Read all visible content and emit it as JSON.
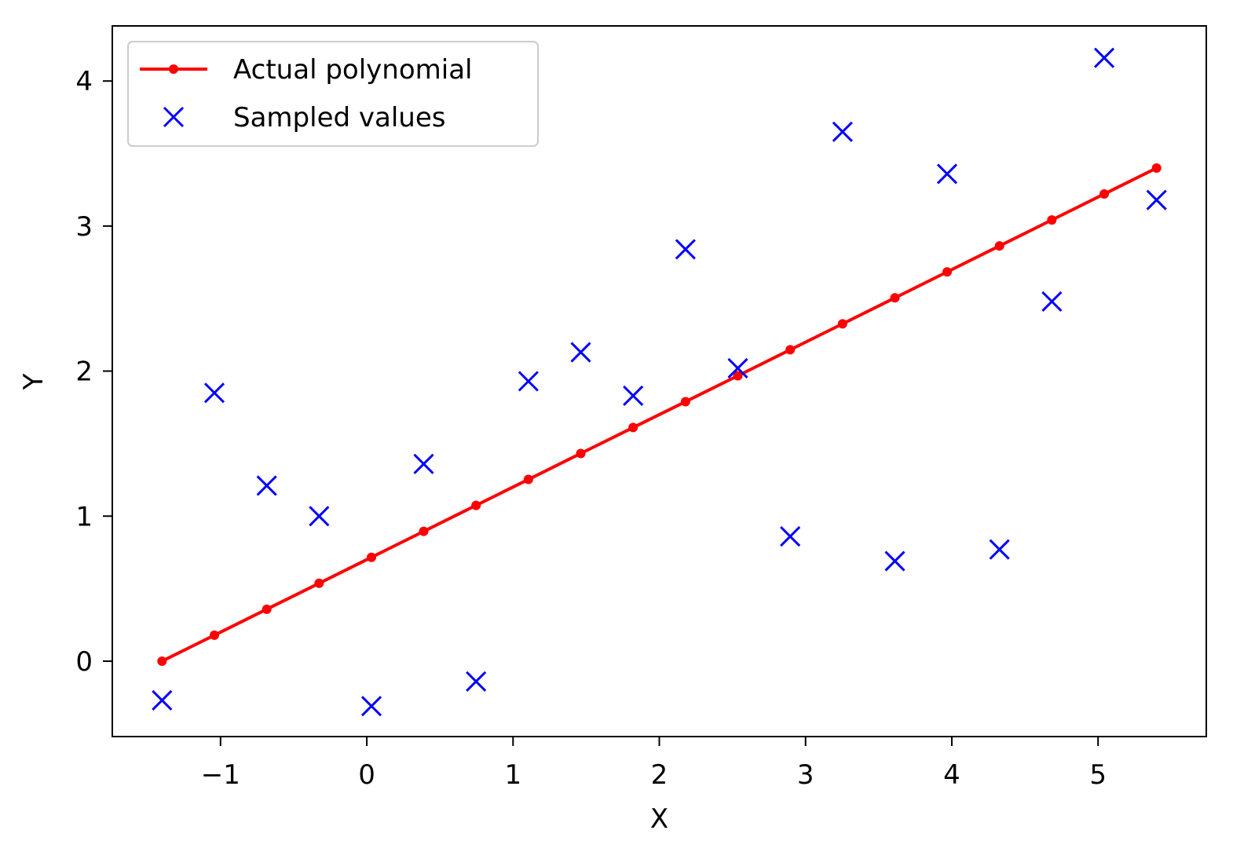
{
  "chart_data": {
    "type": "line",
    "title": "",
    "xlabel": "X",
    "ylabel": "Y",
    "xlim": [
      -1.74,
      5.74
    ],
    "ylim": [
      -0.52,
      4.38
    ],
    "x_ticks": [
      -1,
      0,
      1,
      2,
      3,
      4,
      5
    ],
    "x_tick_labels": [
      "−1",
      "0",
      "1",
      "2",
      "3",
      "4",
      "5"
    ],
    "y_ticks": [
      0,
      1,
      2,
      3,
      4
    ],
    "y_tick_labels": [
      "0",
      "1",
      "2",
      "3",
      "4"
    ],
    "grid": false,
    "legend_position": "upper-left",
    "series": [
      {
        "name": "Actual polynomial",
        "style": "line-with-dot-markers",
        "color": "#ff0000",
        "x": [
          -1.4,
          -1.042,
          -0.684,
          -0.326,
          0.032,
          0.389,
          0.747,
          1.105,
          1.463,
          1.821,
          2.179,
          2.537,
          2.895,
          3.253,
          3.611,
          3.968,
          4.326,
          4.684,
          5.042,
          5.4
        ],
        "y": [
          0.0,
          0.179,
          0.358,
          0.537,
          0.716,
          0.895,
          1.074,
          1.253,
          1.432,
          1.611,
          1.789,
          1.968,
          2.147,
          2.326,
          2.505,
          2.684,
          2.863,
          3.042,
          3.221,
          3.4
        ]
      },
      {
        "name": "Sampled values",
        "style": "x-markers",
        "color": "#0000ff",
        "x": [
          -1.4,
          -1.042,
          -0.684,
          -0.326,
          0.032,
          0.389,
          0.747,
          1.105,
          1.463,
          1.821,
          2.179,
          2.537,
          2.895,
          3.253,
          3.611,
          3.968,
          4.326,
          4.684,
          5.042,
          5.4
        ],
        "y": [
          -0.27,
          1.85,
          1.21,
          1.0,
          -0.31,
          1.36,
          -0.14,
          1.93,
          2.13,
          1.83,
          2.84,
          2.02,
          0.86,
          3.65,
          0.69,
          3.36,
          0.77,
          2.48,
          4.16,
          3.18
        ]
      }
    ]
  }
}
